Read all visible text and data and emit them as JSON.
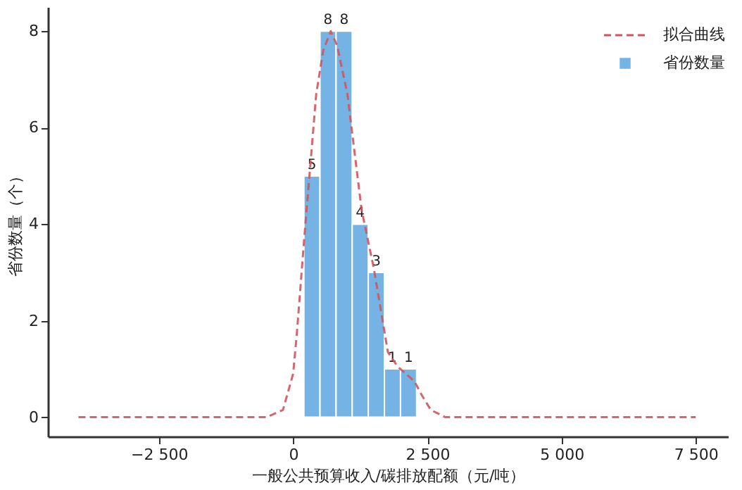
{
  "chart_data": {
    "type": "histogram",
    "xlabel": "一般公共预算收入/碳排放配额（元/吨）",
    "ylabel": "省份数量（个）",
    "bins": [
      200,
      500,
      800,
      1100,
      1400,
      1700,
      2000,
      2300
    ],
    "series": [
      {
        "name": "拟合曲线",
        "type": "line",
        "color": "#d0555e",
        "line_style": "dashed",
        "x": [
          -4000,
          -500,
          -190,
          0,
          70,
          206,
          430,
          560,
          700,
          820,
          1010,
          1275,
          1500,
          1765,
          1945,
          2100,
          2255,
          2400,
          2565,
          2835,
          7500
        ],
        "values": [
          0,
          0,
          0.15,
          0.9,
          1.75,
          3.7,
          6.7,
          7.6,
          8.0,
          7.7,
          6.7,
          4.3,
          3.1,
          1.35,
          1.05,
          0.9,
          0.75,
          0.45,
          0.15,
          0,
          0
        ]
      },
      {
        "name": "省份数量",
        "color": "#74b3e3",
        "values": [
          5,
          8,
          8,
          4,
          3,
          1,
          1
        ],
        "value_labels": [
          "5",
          "8",
          "8",
          "4",
          "3",
          "1",
          "1"
        ]
      }
    ],
    "xlim": [
      -4570,
      8100
    ],
    "ylim": [
      -0.4,
      8.5
    ],
    "xticks": [
      {
        "value": -2500,
        "label": "−2 500"
      },
      0,
      {
        "value": 2500,
        "label": "2 500"
      },
      {
        "value": 5000,
        "label": "5 000"
      },
      {
        "value": 7500,
        "label": "7 500"
      }
    ],
    "yticks": [
      0,
      2,
      4,
      6,
      8
    ],
    "legend": "top right",
    "grid": false
  }
}
